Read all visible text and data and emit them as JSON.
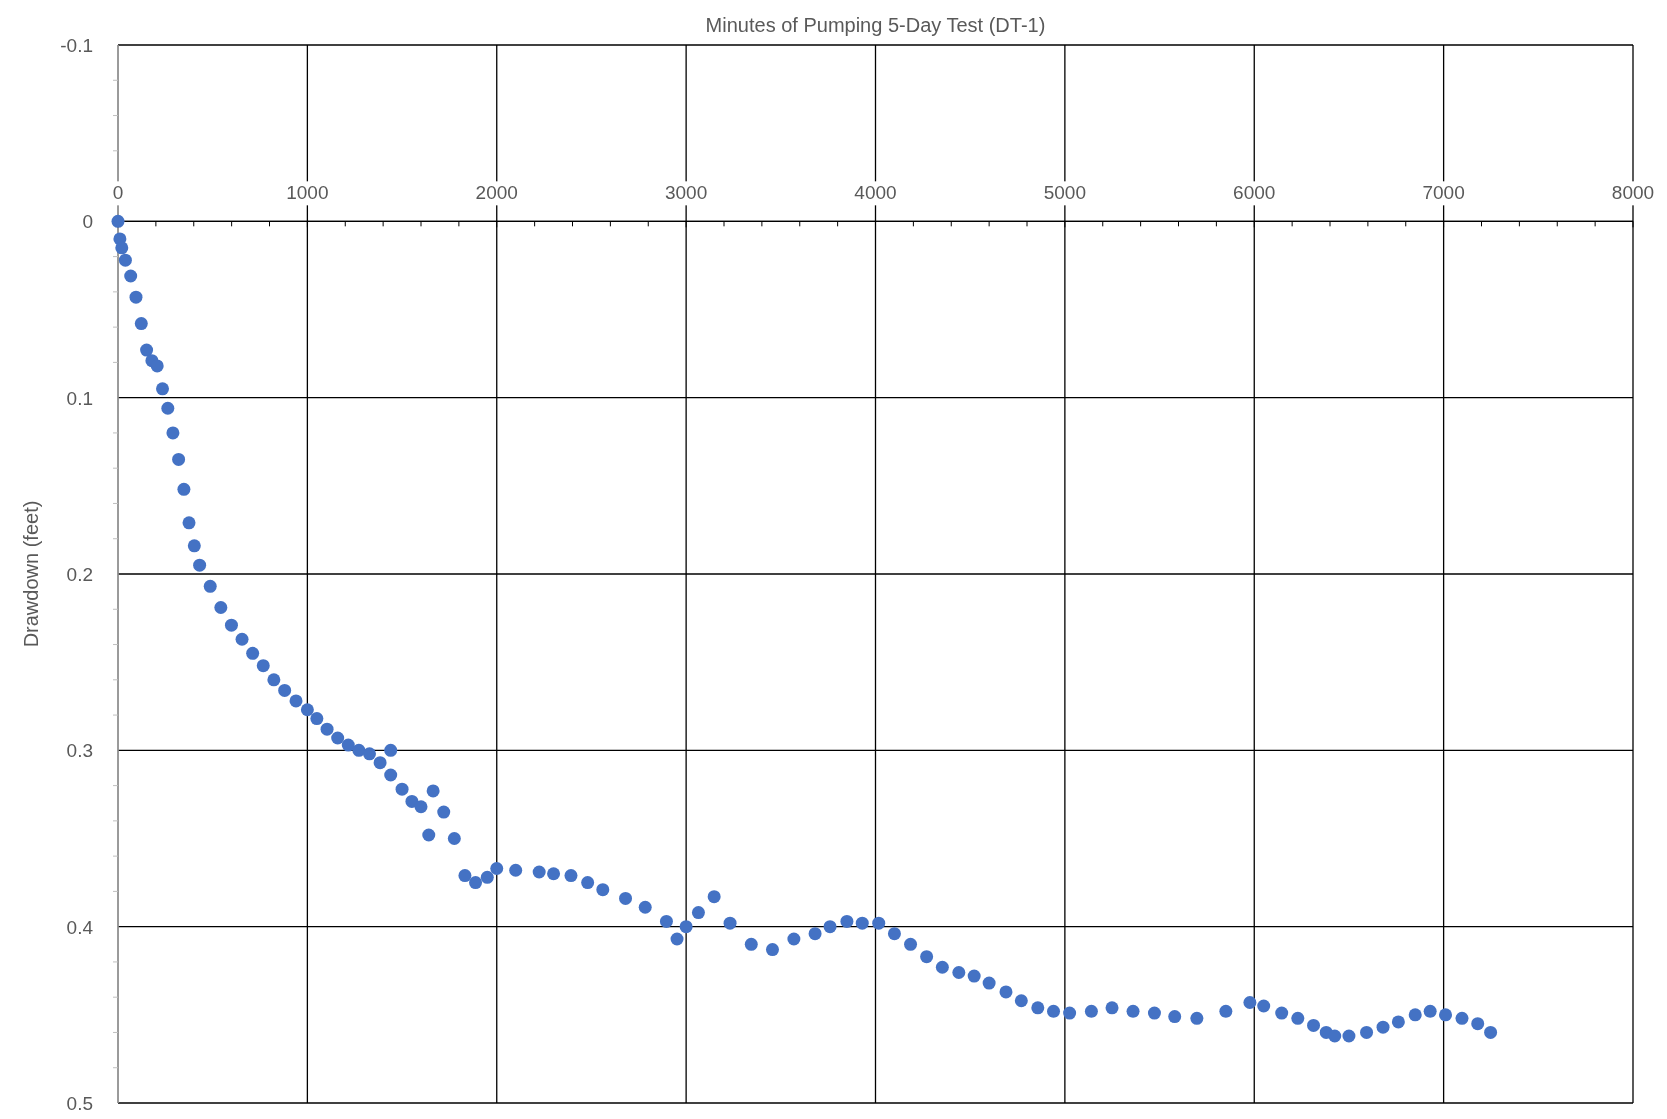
{
  "chart_data": {
    "type": "scatter",
    "xlabel": "Minutes of Pumping 5-Day Test (DT-1)",
    "ylabel": "Drawdown (feet)",
    "xlim": [
      0,
      8000
    ],
    "xticks": [
      0,
      1000,
      2000,
      3000,
      4000,
      5000,
      6000,
      7000,
      8000
    ],
    "ylim": [
      0.5,
      -0.1
    ],
    "yticks": [
      -0.1,
      0,
      0.1,
      0.2,
      0.3,
      0.4,
      0.5
    ],
    "grid": true,
    "marker": "circle",
    "series": [
      {
        "color": "#4472c4",
        "x": [
          0,
          10,
          20,
          39,
          67,
          95,
          123,
          151,
          179,
          207,
          235,
          263,
          290,
          320,
          348,
          375,
          403,
          431,
          487,
          543,
          599,
          655,
          711,
          767,
          823,
          880,
          940,
          1000,
          1050,
          1104,
          1160,
          1216,
          1272,
          1328,
          1384,
          1440,
          1440,
          1500,
          1552,
          1600,
          1641,
          1664,
          1720,
          1776,
          1832,
          1888,
          1950,
          2000,
          2100,
          2224,
          2300,
          2392,
          2480,
          2560,
          2680,
          2784,
          2896,
          2952,
          3000,
          3065,
          3148,
          3232,
          3344,
          3456,
          3569,
          3681,
          3760,
          3849,
          3930,
          4017,
          4100,
          4185,
          4270,
          4353,
          4440,
          4521,
          4600,
          4689,
          4770,
          4857,
          4940,
          5025,
          5140,
          5249,
          5360,
          5473,
          5580,
          5697,
          5850,
          5977,
          6050,
          6145,
          6230,
          6313,
          6380,
          6425,
          6500,
          6593,
          6680,
          6761,
          6850,
          6929,
          7010,
          7097,
          7180,
          7248
        ],
        "values": [
          0,
          0.01,
          0.015,
          0.022,
          0.031,
          0.043,
          0.058,
          0.073,
          0.079,
          0.082,
          0.095,
          0.106,
          0.12,
          0.135,
          0.152,
          0.171,
          0.184,
          0.195,
          0.207,
          0.219,
          0.229,
          0.237,
          0.245,
          0.252,
          0.26,
          0.266,
          0.272,
          0.277,
          0.282,
          0.288,
          0.293,
          0.297,
          0.3,
          0.302,
          0.307,
          0.314,
          0.3,
          0.322,
          0.329,
          0.332,
          0.348,
          0.323,
          0.335,
          0.35,
          0.371,
          0.375,
          0.372,
          0.367,
          0.368,
          0.369,
          0.37,
          0.371,
          0.375,
          0.379,
          0.384,
          0.389,
          0.397,
          0.407,
          0.4,
          0.392,
          0.383,
          0.398,
          0.41,
          0.413,
          0.407,
          0.404,
          0.4,
          0.397,
          0.398,
          0.398,
          0.404,
          0.41,
          0.417,
          0.423,
          0.426,
          0.428,
          0.432,
          0.437,
          0.442,
          0.446,
          0.448,
          0.449,
          0.448,
          0.446,
          0.448,
          0.449,
          0.451,
          0.452,
          0.448,
          0.443,
          0.445,
          0.449,
          0.452,
          0.456,
          0.46,
          0.462,
          0.462,
          0.46,
          0.457,
          0.454,
          0.45,
          0.448,
          0.45,
          0.452,
          0.455,
          0.46
        ]
      }
    ]
  }
}
